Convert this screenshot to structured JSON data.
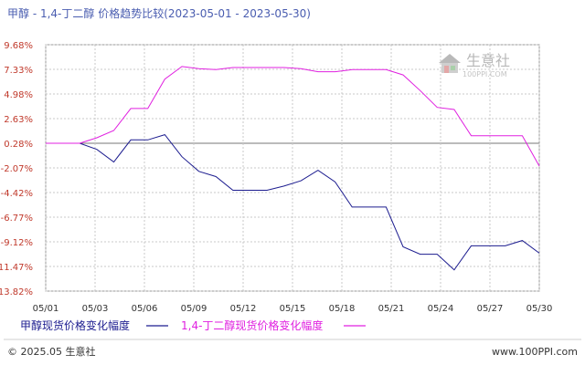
{
  "header": {
    "title": "甲醇 - 1,4-丁二醇 价格趋势比较(2023-05-01 - 2023-05-30)"
  },
  "watermark": {
    "brand": "生意社",
    "url": "100PPI.COM"
  },
  "footer": {
    "copyright": "© 2025.05 生意社",
    "site": "www.100PPI.com"
  },
  "colors": {
    "series1": "#1c1c8f",
    "series2": "#e020e0",
    "ytick": "#c0392b",
    "grid": "#c8c8c8",
    "title": "#4a5db0"
  },
  "chart_data": {
    "type": "line",
    "title": "甲醇 - 1,4-丁二醇 价格趋势比较(2023-05-01 - 2023-05-30)",
    "xlabel": "",
    "ylabel": "",
    "x_ticks": [
      "05/01",
      "05/03",
      "05/06",
      "05/09",
      "05/12",
      "05/15",
      "05/18",
      "05/21",
      "05/24",
      "05/27",
      "05/30"
    ],
    "y_ticks": [
      "9.68%",
      "7.33%",
      "4.98%",
      "2.63%",
      "0.28%",
      "-2.07%",
      "-4.42%",
      "-6.77%",
      "-9.12%",
      "-11.47%",
      "-13.82%"
    ],
    "ylim": [
      -13.82,
      9.68
    ],
    "xlim": [
      1,
      30
    ],
    "grid": true,
    "legend_position": "bottom",
    "series": [
      {
        "name": "甲醇现货价格变化幅度",
        "color": "#1c1c8f",
        "x": [
          1,
          2,
          3,
          4,
          5,
          6,
          7,
          8,
          9,
          10,
          11,
          12,
          13,
          14,
          15,
          16,
          17,
          18,
          19,
          20,
          21,
          22,
          23,
          24,
          25,
          26,
          27,
          28,
          29,
          30
        ],
        "values": [
          0.28,
          0.28,
          0.28,
          -0.3,
          -1.5,
          0.6,
          0.6,
          1.1,
          -1.0,
          -2.4,
          -2.9,
          -4.2,
          -4.2,
          -4.2,
          -3.8,
          -3.3,
          -2.3,
          -3.4,
          -5.8,
          -5.8,
          -5.8,
          -9.6,
          -10.3,
          -10.3,
          -11.8,
          -9.5,
          -9.5,
          -9.5,
          -9.0,
          -10.2
        ]
      },
      {
        "name": "1,4-丁二醇现货价格变化幅度",
        "color": "#e020e0",
        "x": [
          1,
          2,
          3,
          4,
          5,
          6,
          7,
          8,
          9,
          10,
          11,
          12,
          13,
          14,
          15,
          16,
          17,
          18,
          19,
          20,
          21,
          22,
          23,
          24,
          25,
          26,
          27,
          28,
          29,
          30
        ],
        "values": [
          0.28,
          0.28,
          0.28,
          0.8,
          1.5,
          3.6,
          3.6,
          6.4,
          7.6,
          7.4,
          7.3,
          7.5,
          7.5,
          7.5,
          7.5,
          7.4,
          7.1,
          7.1,
          7.3,
          7.3,
          7.3,
          6.8,
          5.3,
          3.7,
          3.5,
          1.0,
          1.0,
          1.0,
          1.0,
          -1.9
        ]
      }
    ]
  }
}
